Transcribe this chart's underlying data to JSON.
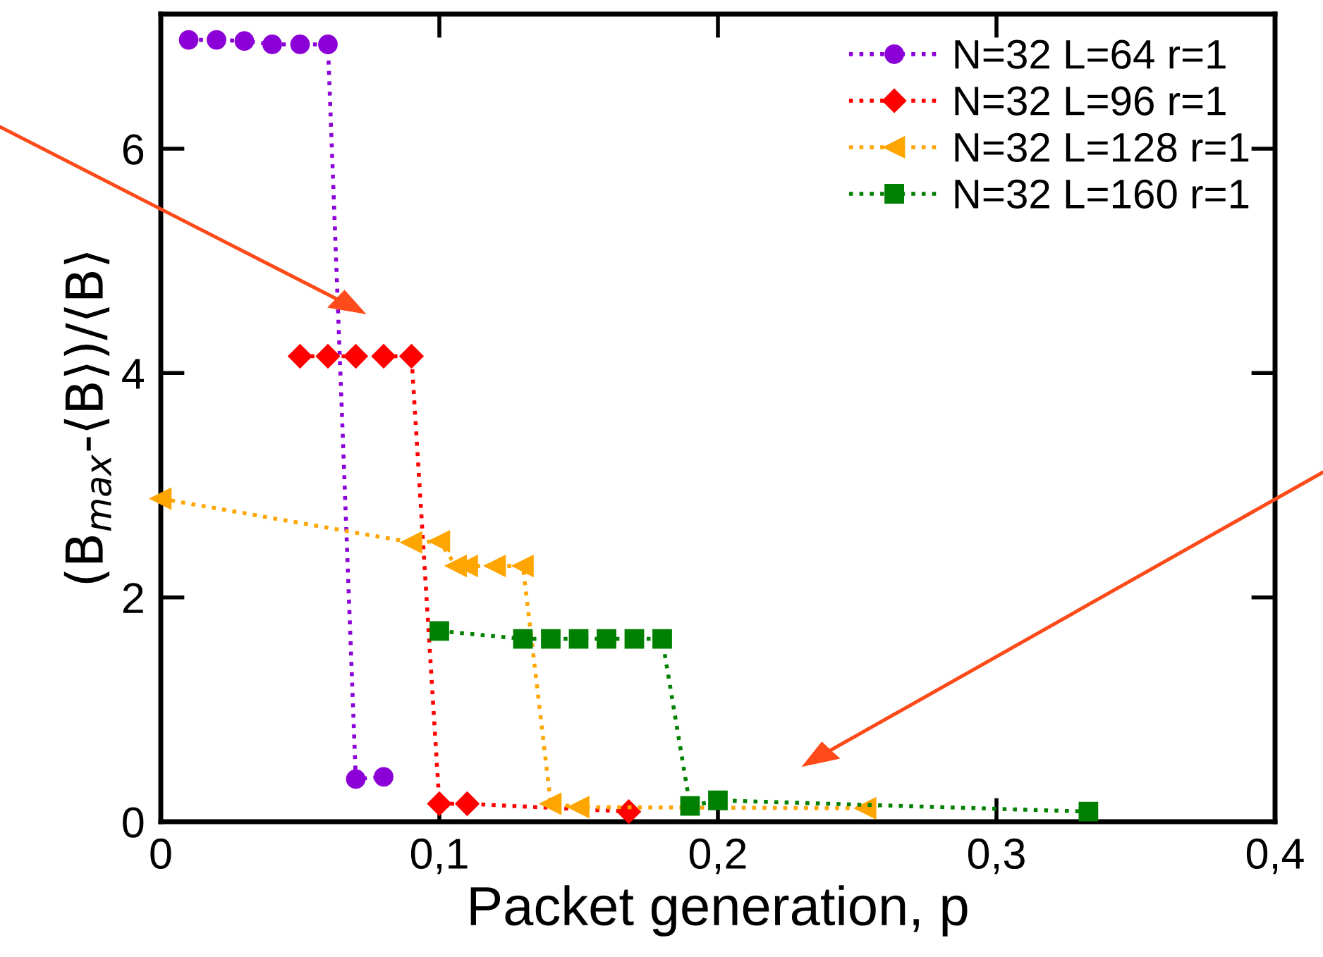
{
  "chart_data": {
    "type": "line",
    "xlabel": "Packet generation, p",
    "ylabel": "(B$_{max}$-⟨B⟩)/⟨B⟩",
    "xlim": [
      0,
      0.4
    ],
    "ylim": [
      0,
      7.2
    ],
    "xticks": [
      0,
      {
        "value": 0.1,
        "label": "0,1"
      },
      {
        "value": 0.2,
        "label": "0,2"
      },
      {
        "value": 0.3,
        "label": "0,3"
      },
      {
        "value": 0.4,
        "label": "0,4"
      }
    ],
    "yticks": [
      0,
      2,
      4,
      6
    ],
    "grid": false,
    "legend": "top right",
    "line_style": "dotted",
    "series": [
      {
        "name": "N=32 L=64 r=1",
        "color": "#8b00d6",
        "marker": "circle",
        "x": [
          0.01,
          0.02,
          0.03,
          0.04,
          0.05,
          0.06,
          0.07,
          0.08
        ],
        "values": [
          6.97,
          6.97,
          6.96,
          6.93,
          6.93,
          6.93,
          0.38,
          0.4
        ]
      },
      {
        "name": "N=32 L=96 r=1",
        "color": "#ff0000",
        "marker": "diamond",
        "x": [
          0.05,
          0.06,
          0.07,
          0.08,
          0.09,
          0.1,
          0.11,
          0.168
        ],
        "values": [
          4.15,
          4.15,
          4.15,
          4.15,
          4.15,
          0.16,
          0.16,
          0.09
        ]
      },
      {
        "name": "N=32 L=128 r=1",
        "color": "#ffa500",
        "marker": "triangle",
        "x": [
          0,
          0.09,
          0.1,
          0.106,
          0.11,
          0.12,
          0.13,
          0.14,
          0.15,
          0.253
        ],
        "values": [
          2.88,
          2.49,
          2.5,
          2.28,
          2.28,
          2.28,
          2.28,
          0.16,
          0.13,
          0.12
        ]
      },
      {
        "name": "N=32 L=160 r=1",
        "color": "#008000",
        "marker": "square",
        "x": [
          0.1,
          0.13,
          0.14,
          0.15,
          0.16,
          0.17,
          0.18,
          0.19,
          0.2,
          0.333
        ],
        "values": [
          1.7,
          1.63,
          1.63,
          1.63,
          1.63,
          1.63,
          1.63,
          0.14,
          0.19,
          0.09
        ]
      }
    ]
  }
}
